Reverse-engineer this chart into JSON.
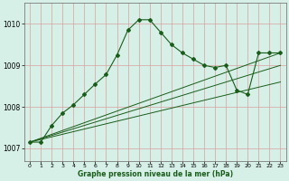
{
  "xlabel": "Graphe pression niveau de la mer (hPa)",
  "ylim": [
    1006.7,
    1010.5
  ],
  "xlim": [
    -0.5,
    23.5
  ],
  "yticks": [
    1007,
    1008,
    1009,
    1010
  ],
  "xticks": [
    0,
    1,
    2,
    3,
    4,
    5,
    6,
    7,
    8,
    9,
    10,
    11,
    12,
    13,
    14,
    15,
    16,
    17,
    18,
    19,
    20,
    21,
    22,
    23
  ],
  "bg_color": "#d6f0e8",
  "grid_color": "#d9a0a0",
  "line_color": "#1a5c1a",
  "line1_x": [
    0,
    1,
    2,
    3,
    4,
    5,
    6,
    7,
    8,
    9,
    10,
    11,
    12,
    13,
    14,
    15,
    16,
    17,
    18,
    19,
    20,
    21,
    22,
    23
  ],
  "line1_y": [
    1007.15,
    1007.15,
    1007.55,
    1007.85,
    1008.05,
    1008.3,
    1008.55,
    1008.78,
    1009.25,
    1009.85,
    1010.1,
    1010.1,
    1009.8,
    1009.5,
    1009.3,
    1009.15,
    1009.0,
    1008.95,
    1009.0,
    1008.4,
    1008.3,
    1009.3,
    1009.3,
    1009.3
  ],
  "line2_x": [
    0,
    23
  ],
  "line2_y": [
    1007.15,
    1009.3
  ],
  "line3_x": [
    0,
    23
  ],
  "line3_y": [
    1007.15,
    1009.0
  ],
  "line4_x": [
    0,
    23
  ],
  "line4_y": [
    1007.15,
    1008.6
  ]
}
